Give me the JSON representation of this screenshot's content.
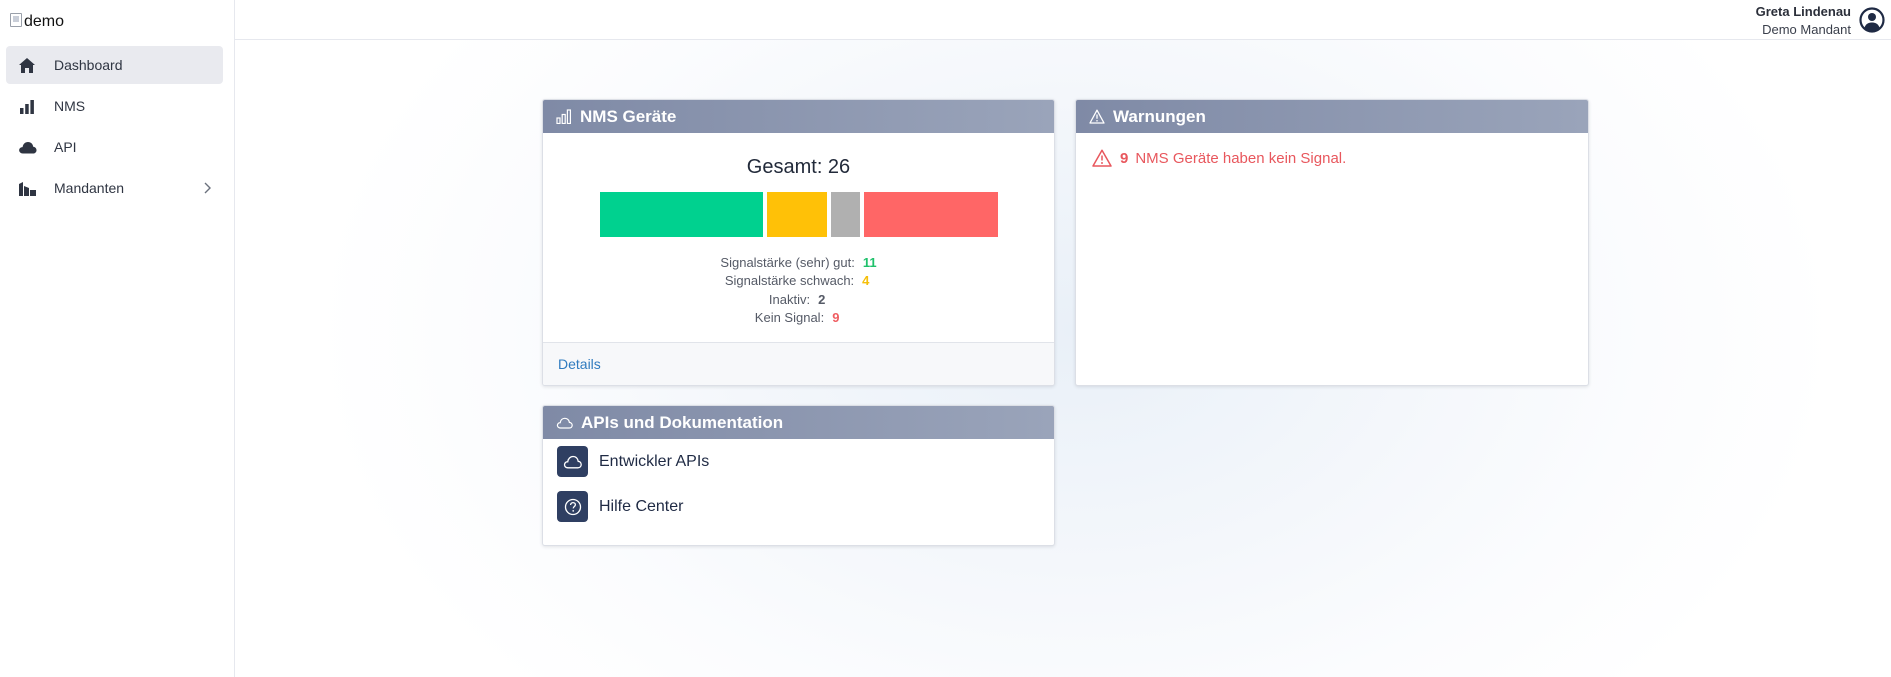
{
  "sidebar": {
    "logo_alt": "demo",
    "items": [
      {
        "label": "Dashboard",
        "icon": "home-icon",
        "active": true
      },
      {
        "label": "NMS",
        "icon": "bar-chart-icon"
      },
      {
        "label": "API",
        "icon": "cloud-icon"
      },
      {
        "label": "Mandanten",
        "icon": "buildings-icon",
        "has_children": true
      }
    ]
  },
  "header": {
    "user_name": "Greta Lindenau",
    "tenant": "Demo Mandant"
  },
  "nms_card": {
    "title": "NMS Geräte",
    "total_label": "Gesamt: 26",
    "stats": [
      {
        "label": "Signalstärke (sehr) gut:",
        "value": "11",
        "color": "#1fc16b"
      },
      {
        "label": "Signalstärke schwach:",
        "value": "4",
        "color": "#f5bf0a"
      },
      {
        "label": "Inaktiv:",
        "value": "2",
        "color": "#555a66"
      },
      {
        "label": "Kein Signal:",
        "value": "9",
        "color": "#ef5d61"
      }
    ],
    "segments": [
      {
        "count": 11,
        "color": "#00d18f"
      },
      {
        "count": 4,
        "color": "#ffc107"
      },
      {
        "count": 2,
        "color": "#b0b0b0"
      },
      {
        "count": 9,
        "color": "#ff6666"
      }
    ],
    "details_link": "Details"
  },
  "warn_card": {
    "title": "Warnungen",
    "count": "9",
    "message": "NMS Geräte haben kein Signal."
  },
  "api_card": {
    "title": "APIs und Dokumentation",
    "links": [
      {
        "label": "Entwickler APIs",
        "icon": "cloud-icon"
      },
      {
        "label": "Hilfe Center",
        "icon": "question-circle-icon"
      }
    ]
  }
}
